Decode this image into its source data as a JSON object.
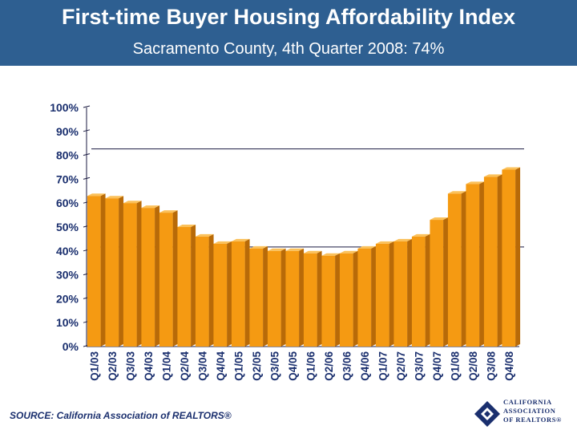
{
  "title": "First-time Buyer Housing Affordability Index",
  "subtitle": "Sacramento County, 4th Quarter 2008: 74%",
  "source": "SOURCE: California Association of REALTORS®",
  "logo": {
    "line1": "CALIFORNIA",
    "line2": "ASSOCIATION",
    "line3": "OF REALTORS®"
  },
  "colors": {
    "header": "#2e5f91",
    "bar_front": "#f59a12",
    "bar_side": "#b86a08",
    "bar_top": "#fbc15a",
    "grid": "#1a1a40",
    "text": "#1a2f6e"
  },
  "chart_data": {
    "type": "bar",
    "title": "First-time Buyer Housing Affordability Index",
    "categories": [
      "Q1/03",
      "Q2/03",
      "Q3/03",
      "Q4/03",
      "Q1/04",
      "Q2/04",
      "Q3/04",
      "Q4/04",
      "Q1/05",
      "Q2/05",
      "Q3/05",
      "Q4/05",
      "Q1/06",
      "Q2/06",
      "Q3/06",
      "Q4/06",
      "Q1/07",
      "Q2/07",
      "Q3/07",
      "Q4/07",
      "Q1/08",
      "Q2/08",
      "Q3/08",
      "Q4/08"
    ],
    "values": [
      63,
      62,
      60,
      58,
      56,
      50,
      46,
      43,
      44,
      41,
      40,
      40,
      39,
      38,
      39,
      41,
      43,
      44,
      46,
      53,
      64,
      68,
      71,
      74
    ],
    "ylim": [
      0,
      100
    ],
    "yticks": [
      "0%",
      "10%",
      "20%",
      "30%",
      "40%",
      "50%",
      "60%",
      "70%",
      "80%",
      "90%",
      "100%"
    ],
    "xlabel": "",
    "ylabel": "",
    "grid": false,
    "legend": "none"
  }
}
